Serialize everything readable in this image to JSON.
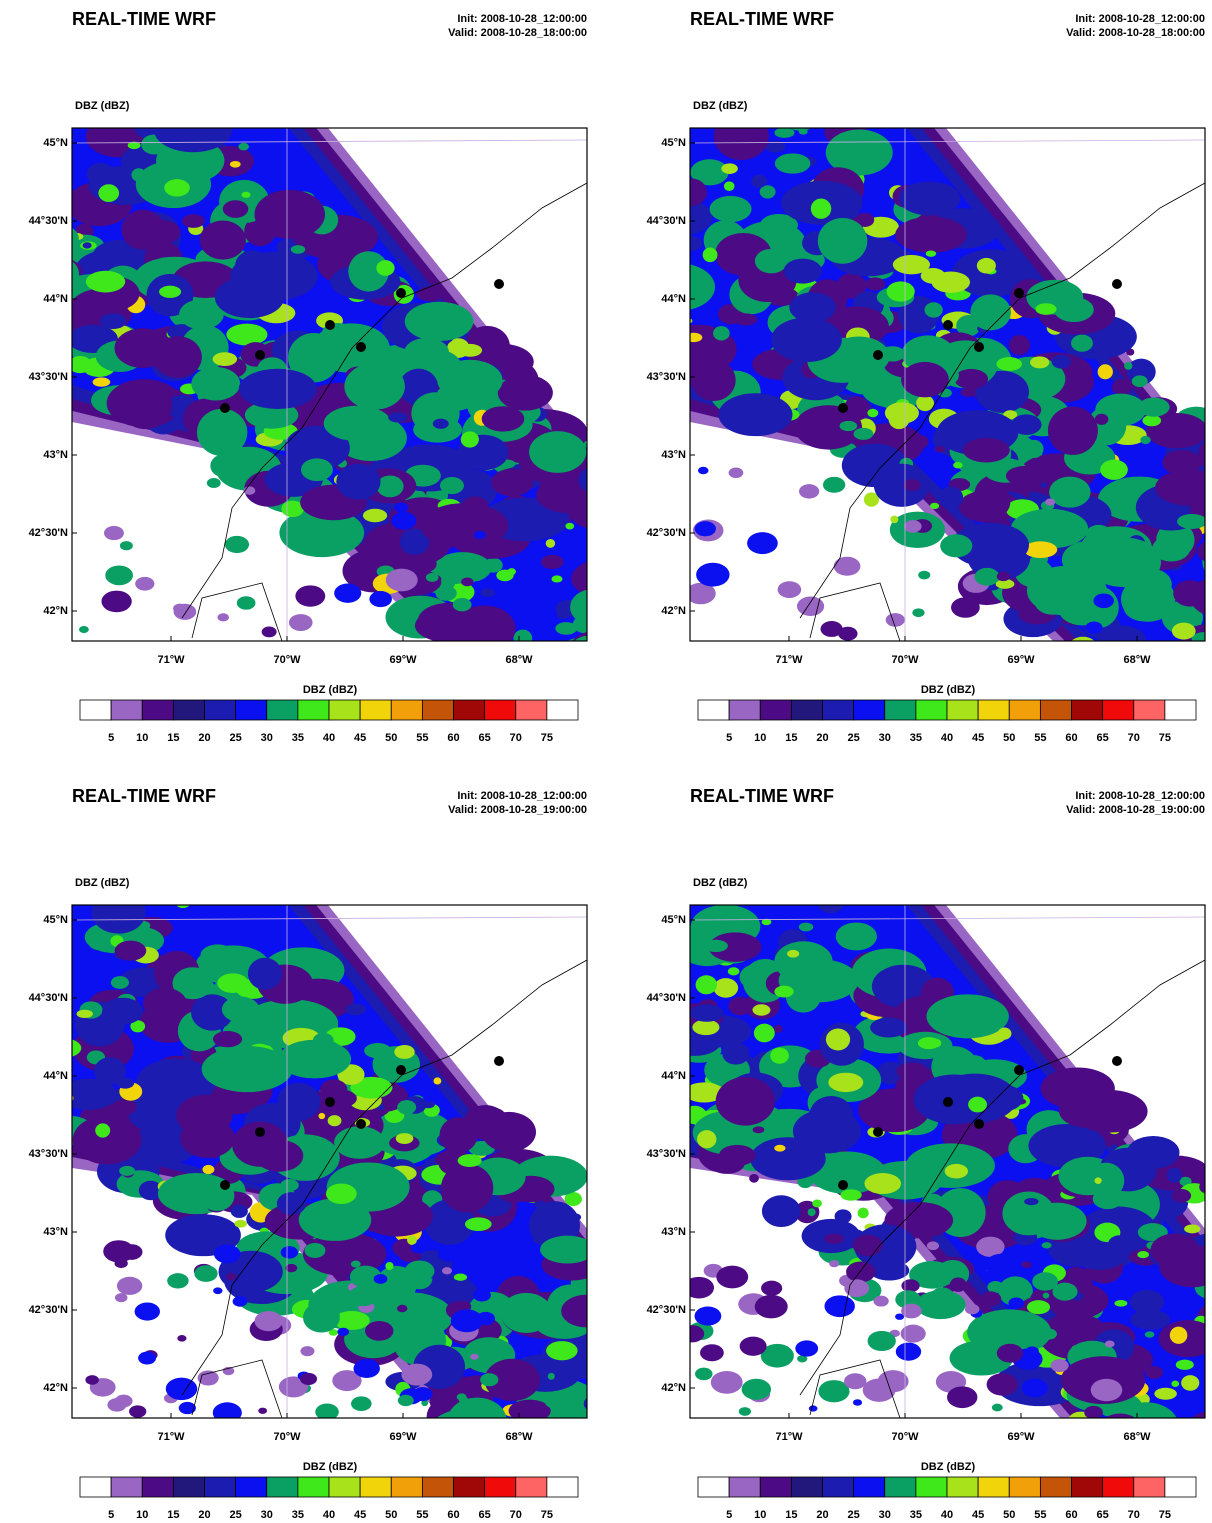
{
  "colorbar_colors": [
    "#9966c4",
    "#4c0a84",
    "#22177a",
    "#1c1cb0",
    "#0a10f0",
    "#0aa064",
    "#3fe81a",
    "#a8e21a",
    "#f2d40a",
    "#f2a00a",
    "#c45408",
    "#a00808",
    "#f00a0a",
    "#ff6464"
  ],
  "panels": [
    {
      "title": "REAL-TIME WRF",
      "init": "Init: 2008-10-28_12:00:00",
      "valid": "Valid: 2008-10-28_18:00:00",
      "field_label": "DBZ  (dBZ)",
      "lat_labels": [
        "45°N",
        "44°30'N",
        "44°N",
        "43°30'N",
        "43°N",
        "42°30'N",
        "42°N"
      ],
      "lon_labels": [
        "71°W",
        "70°W",
        "69°W",
        "68°W"
      ],
      "colorbar_label": "DBZ  (dBZ)",
      "colorbar_ticks": [
        "5",
        "10",
        "15",
        "20",
        "25",
        "30",
        "35",
        "40",
        "45",
        "50",
        "55",
        "60",
        "65",
        "70",
        "75"
      ]
    },
    {
      "title": "REAL-TIME WRF",
      "init": "Init: 2008-10-28_12:00:00",
      "valid": "Valid: 2008-10-28_18:00:00",
      "field_label": "DBZ  (dBZ)",
      "lat_labels": [
        "45°N",
        "44°30'N",
        "44°N",
        "43°30'N",
        "43°N",
        "42°30'N",
        "42°N"
      ],
      "lon_labels": [
        "71°W",
        "70°W",
        "69°W",
        "68°W"
      ],
      "colorbar_label": "DBZ  (dBZ)",
      "colorbar_ticks": [
        "5",
        "10",
        "15",
        "20",
        "25",
        "30",
        "35",
        "40",
        "45",
        "50",
        "55",
        "60",
        "65",
        "70",
        "75"
      ]
    },
    {
      "title": "REAL-TIME WRF",
      "init": "Init: 2008-10-28_12:00:00",
      "valid": "Valid: 2008-10-28_19:00:00",
      "field_label": "DBZ  (dBZ)",
      "lat_labels": [
        "45°N",
        "44°30'N",
        "44°N",
        "43°30'N",
        "43°N",
        "42°30'N",
        "42°N"
      ],
      "lon_labels": [
        "71°W",
        "70°W",
        "69°W",
        "68°W"
      ],
      "colorbar_label": "DBZ  (dBZ)",
      "colorbar_ticks": [
        "5",
        "10",
        "15",
        "20",
        "25",
        "30",
        "35",
        "40",
        "45",
        "50",
        "55",
        "60",
        "65",
        "70",
        "75"
      ]
    },
    {
      "title": "REAL-TIME WRF",
      "init": "Init: 2008-10-28_12:00:00",
      "valid": "Valid: 2008-10-28_19:00:00",
      "field_label": "DBZ  (dBZ)",
      "lat_labels": [
        "45°N",
        "44°30'N",
        "44°N",
        "43°30'N",
        "43°N",
        "42°30'N",
        "42°N"
      ],
      "lon_labels": [
        "71°W",
        "70°W",
        "69°W",
        "68°W"
      ],
      "colorbar_label": "DBZ  (dBZ)",
      "colorbar_ticks": [
        "5",
        "10",
        "15",
        "20",
        "25",
        "30",
        "35",
        "40",
        "45",
        "50",
        "55",
        "60",
        "65",
        "70",
        "75"
      ]
    }
  ]
}
